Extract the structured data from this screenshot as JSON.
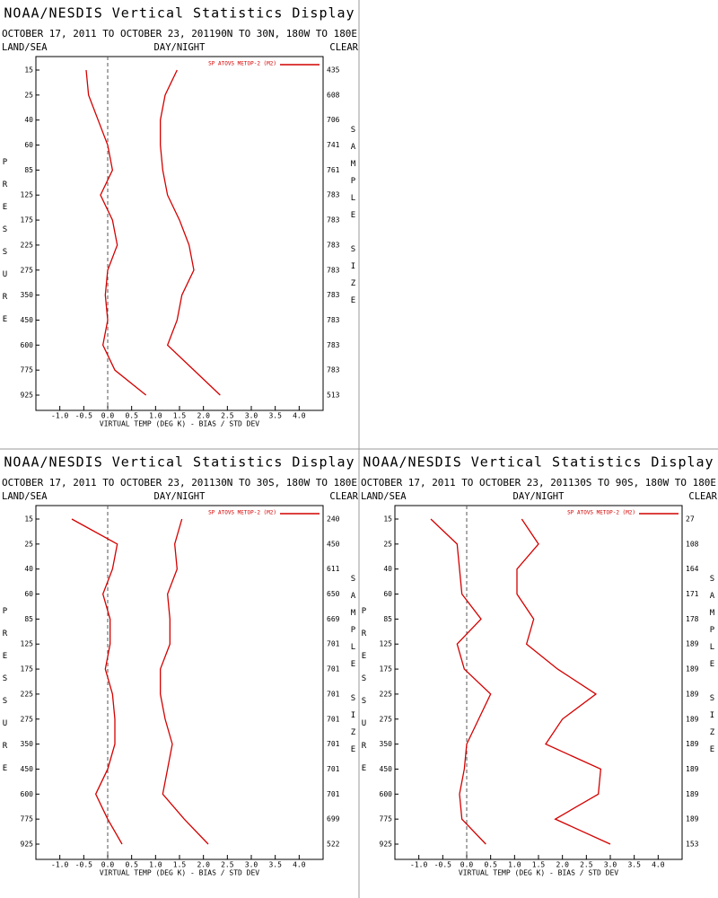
{
  "chart_data": [
    {
      "type": "line",
      "title": "NOAA/NESDIS Vertical Statistics Display",
      "subtitle": "OCTOBER 17, 2011 TO OCTOBER 23, 201190N TO 30N, 180W TO 180E",
      "left_label": "LAND/SEA",
      "center_label": "DAY/NIGHT",
      "right_label": "CLEAR",
      "ylabel": "PRESSURE",
      "y2label": "SAMPLE SIZE",
      "xlabel": "VIRTUAL TEMP (DEG K) - BIAS / STD DEV",
      "categories": [
        15,
        25,
        40,
        60,
        85,
        125,
        175,
        225,
        275,
        350,
        450,
        600,
        775,
        925
      ],
      "sample_size": [
        435,
        608,
        706,
        741,
        761,
        783,
        783,
        783,
        783,
        783,
        783,
        783,
        783,
        513
      ],
      "xlim": [
        -1.5,
        4.5
      ],
      "xticks": [
        {
          "value": -1,
          "label": "-1.0"
        },
        -0.5,
        {
          "value": 0,
          "label": "0.0"
        },
        0.5,
        {
          "value": 1,
          "label": "1.0"
        },
        1.5,
        {
          "value": 2,
          "label": "2.0"
        },
        2.5,
        {
          "value": 3,
          "label": "3.0"
        },
        3.5,
        {
          "value": 4,
          "label": "4.0"
        }
      ],
      "series": [
        {
          "name": "SP ATOVS METOP-2 (M2)",
          "color": "#d40000",
          "bias": [
            -0.45,
            -0.4,
            -0.2,
            0.0,
            0.1,
            -0.15,
            0.1,
            0.2,
            0.0,
            -0.05,
            0.0,
            -0.1,
            0.15,
            0.8
          ],
          "std_dev": [
            1.45,
            1.2,
            1.1,
            1.1,
            1.15,
            1.25,
            1.5,
            1.7,
            1.8,
            1.55,
            1.45,
            1.25,
            1.8,
            2.35
          ]
        }
      ]
    },
    {
      "type": "line",
      "title": "NOAA/NESDIS Vertical Statistics Display",
      "subtitle": "OCTOBER 17, 2011 TO OCTOBER 23, 201130N TO 30S, 180W TO 180E",
      "left_label": "LAND/SEA",
      "center_label": "DAY/NIGHT",
      "right_label": "CLEAR",
      "ylabel": "PRESSURE",
      "y2label": "SAMPLE SIZE",
      "xlabel": "VIRTUAL TEMP (DEG K) - BIAS / STD DEV",
      "categories": [
        15,
        25,
        40,
        60,
        85,
        125,
        175,
        225,
        275,
        350,
        450,
        600,
        775,
        925
      ],
      "sample_size": [
        240,
        450,
        611,
        650,
        669,
        701,
        701,
        701,
        701,
        701,
        701,
        701,
        699,
        522
      ],
      "xlim": [
        -1.5,
        4.5
      ],
      "xticks": [
        {
          "value": -1,
          "label": "-1.0"
        },
        -0.5,
        {
          "value": 0,
          "label": "0.0"
        },
        0.5,
        {
          "value": 1,
          "label": "1.0"
        },
        1.5,
        {
          "value": 2,
          "label": "2.0"
        },
        2.5,
        {
          "value": 3,
          "label": "3.0"
        },
        3.5,
        {
          "value": 4,
          "label": "4.0"
        }
      ],
      "series": [
        {
          "name": "SP ATOVS METOP-2 (M2)",
          "color": "#d40000",
          "bias": [
            -0.75,
            0.2,
            0.1,
            -0.1,
            0.05,
            0.05,
            -0.05,
            0.1,
            0.15,
            0.15,
            0.0,
            -0.25,
            0.0,
            0.3
          ],
          "std_dev": [
            1.55,
            1.4,
            1.45,
            1.25,
            1.3,
            1.3,
            1.1,
            1.1,
            1.2,
            1.35,
            1.25,
            1.15,
            1.6,
            2.1
          ]
        }
      ]
    },
    {
      "type": "line",
      "title": "NOAA/NESDIS Vertical Statistics Display",
      "subtitle": "OCTOBER 17, 2011 TO OCTOBER 23, 201130S TO 90S, 180W TO 180E",
      "left_label": "LAND/SEA",
      "center_label": "DAY/NIGHT",
      "right_label": "CLEAR",
      "ylabel": "PRESSURE",
      "y2label": "SAMPLE SIZE",
      "xlabel": "VIRTUAL TEMP (DEG K) - BIAS / STD DEV",
      "categories": [
        15,
        25,
        40,
        60,
        85,
        125,
        175,
        225,
        275,
        350,
        450,
        600,
        775,
        925
      ],
      "sample_size": [
        27,
        108,
        164,
        171,
        178,
        189,
        189,
        189,
        189,
        189,
        189,
        189,
        189,
        153
      ],
      "xlim": [
        -1.5,
        4.5
      ],
      "xticks": [
        {
          "value": -1,
          "label": "-1.0"
        },
        -0.5,
        {
          "value": 0,
          "label": "0.0"
        },
        0.5,
        {
          "value": 1,
          "label": "1.0"
        },
        1.5,
        {
          "value": 2,
          "label": "2.0"
        },
        2.5,
        {
          "value": 3,
          "label": "3.0"
        },
        3.5,
        {
          "value": 4,
          "label": "4.0"
        }
      ],
      "series": [
        {
          "name": "SP ATOVS METOP-2 (M2)",
          "color": "#d40000",
          "bias": [
            -0.75,
            -0.2,
            -0.15,
            -0.1,
            0.3,
            -0.2,
            -0.05,
            0.5,
            0.25,
            0.0,
            -0.05,
            -0.15,
            -0.1,
            0.4
          ],
          "std_dev": [
            1.15,
            1.5,
            1.05,
            1.05,
            1.4,
            1.25,
            1.9,
            2.7,
            2.0,
            1.65,
            2.8,
            2.75,
            1.85,
            3.0
          ]
        }
      ]
    }
  ]
}
